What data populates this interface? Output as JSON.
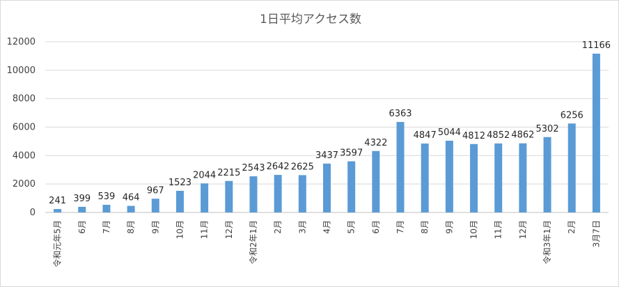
{
  "chart_data": {
    "type": "bar",
    "title": "1日平均アクセス数",
    "xlabel": "",
    "ylabel": "",
    "ylim": [
      0,
      12000
    ],
    "yticks": [
      0,
      2000,
      4000,
      6000,
      8000,
      10000,
      12000
    ],
    "grid": true,
    "legend": "none",
    "bar_color": "#5b9bd5",
    "categories": [
      "令和元年5月",
      "6月",
      "7月",
      "8月",
      "9月",
      "10月",
      "11月",
      "12月",
      "令和2年1月",
      "2月",
      "3月",
      "4月",
      "5月",
      "6月",
      "7月",
      "8月",
      "9月",
      "10月",
      "11月",
      "12月",
      "令和3年1月",
      "2月",
      "3月7日"
    ],
    "values": [
      241,
      399,
      539,
      464,
      967,
      1523,
      2044,
      2215,
      2543,
      2642,
      2625,
      3437,
      3597,
      4322,
      6363,
      4847,
      5044,
      4812,
      4852,
      4862,
      5302,
      6256,
      11166
    ]
  }
}
